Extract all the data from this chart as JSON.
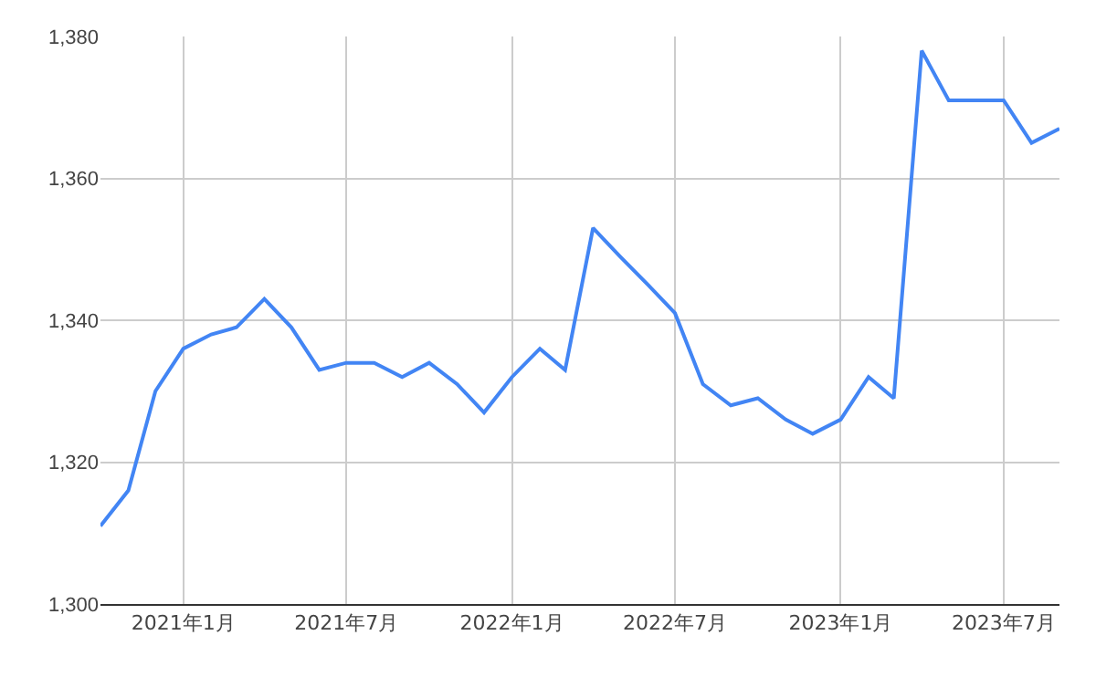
{
  "chart_data": {
    "type": "line",
    "x": [
      "2020-10",
      "2020-11",
      "2020-12",
      "2021-01",
      "2021-02",
      "2021-03",
      "2021-04",
      "2021-05",
      "2021-06",
      "2021-07",
      "2021-08",
      "2021-09",
      "2021-10",
      "2021-11",
      "2021-12",
      "2022-01",
      "2022-02",
      "2022-03",
      "2022-04",
      "2022-05",
      "2022-06",
      "2022-07",
      "2022-08",
      "2022-09",
      "2022-10",
      "2022-11",
      "2022-12",
      "2023-01",
      "2023-02",
      "2023-03",
      "2023-04",
      "2023-05",
      "2023-06",
      "2023-07",
      "2023-08",
      "2023-09"
    ],
    "series": [
      {
        "color": "#4285f4",
        "values": [
          1311,
          1316,
          1330,
          1336,
          1338,
          1339,
          1343,
          1339,
          1333,
          1334,
          1334,
          1332,
          1334,
          1331,
          1327,
          1332,
          1336,
          1333,
          1353,
          1349,
          1345,
          1341,
          1331,
          1328,
          1329,
          1326,
          1324,
          1326,
          1332,
          1329,
          1378,
          1371,
          1371,
          1371,
          1365,
          1367
        ]
      }
    ],
    "xlim": [
      "2020-10",
      "2023-09"
    ],
    "xticks": [
      {
        "value": "2021-01",
        "label": "2021年1月"
      },
      {
        "value": "2021-07",
        "label": "2021年7月"
      },
      {
        "value": "2022-01",
        "label": "2022年1月"
      },
      {
        "value": "2022-07",
        "label": "2022年7月"
      },
      {
        "value": "2023-01",
        "label": "2023年1月"
      },
      {
        "value": "2023-07",
        "label": "2023年7月"
      }
    ],
    "ylim": [
      1300,
      1380
    ],
    "yticks": [
      {
        "value": 1300,
        "label": "1,300"
      },
      {
        "value": 1320,
        "label": "1,320"
      },
      {
        "value": 1340,
        "label": "1,340"
      },
      {
        "value": 1360,
        "label": "1,360"
      },
      {
        "value": 1380,
        "label": "1,380"
      }
    ],
    "grid": true,
    "line_style": "solid",
    "marker": "none"
  }
}
